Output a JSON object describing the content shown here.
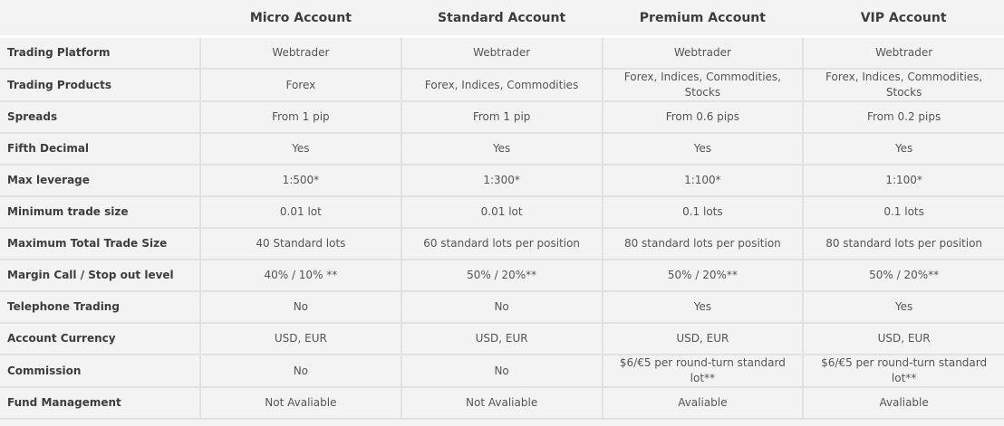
{
  "columns": [
    "",
    "Micro Account",
    "Standard Account",
    "Premium Account",
    "VIP Account"
  ],
  "rows": [
    {
      "label": "Trading Platform",
      "values": [
        "Webtrader",
        "Webtrader",
        "Webtrader",
        "Webtrader"
      ]
    },
    {
      "label": "Trading Products",
      "values": [
        "Forex",
        "Forex, Indices, Commodities",
        "Forex, Indices, Commodities, Stocks",
        "Forex, Indices, Commodities, Stocks"
      ]
    },
    {
      "label": "Spreads",
      "values": [
        "From 1 pip",
        "From 1 pip",
        "From 0.6 pips",
        "From 0.2 pips"
      ]
    },
    {
      "label": "Fifth Decimal",
      "values": [
        "Yes",
        "Yes",
        "Yes",
        "Yes"
      ]
    },
    {
      "label": "Max leverage",
      "values": [
        "1:500*",
        "1:300*",
        "1:100*",
        "1:100*"
      ]
    },
    {
      "label": "Minimum trade size",
      "values": [
        "0.01 lot",
        "0.01 lot",
        "0.1 lots",
        "0.1 lots"
      ]
    },
    {
      "label": "Maximum Total Trade Size",
      "values": [
        "40 Standard lots",
        "60 standard lots per position",
        "80 standard lots per position",
        "80 standard lots per position"
      ]
    },
    {
      "label": "Margin Call / Stop out level",
      "values": [
        "40% / 10% **",
        "50% / 20%**",
        "50% / 20%**",
        "50% / 20%**"
      ]
    },
    {
      "label": "Telephone Trading",
      "values": [
        "No",
        "No",
        "Yes",
        "Yes"
      ]
    },
    {
      "label": "Account Currency",
      "values": [
        "USD, EUR",
        "USD, EUR",
        "USD, EUR",
        "USD, EUR"
      ]
    },
    {
      "label": "Commission",
      "values": [
        "No",
        "No",
        "$6/€5 per round-turn standard lot**",
        "$6/€5 per round-turn standard lot**"
      ]
    },
    {
      "label": "Fund Management",
      "values": [
        "Not Avaliable",
        "Not Avaliable",
        "Avaliable",
        "Avaliable"
      ]
    }
  ]
}
